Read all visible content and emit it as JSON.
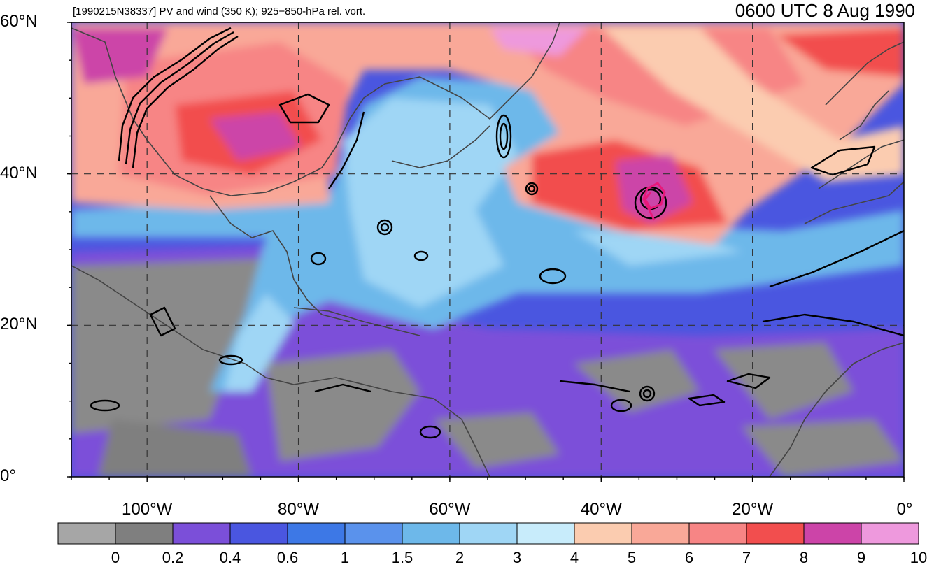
{
  "title_left": "[1990215N38337] PV and wind (350 K); 925−850-hPa rel. vort.",
  "title_right": "0600 UTC 8 Aug 1990",
  "lat_ticks": [
    {
      "label": "60°N",
      "value": 60
    },
    {
      "label": "40°N",
      "value": 40
    },
    {
      "label": "20°N",
      "value": 20
    },
    {
      "label": "0°",
      "value": 0
    }
  ],
  "lon_ticks": [
    {
      "label": "100°W",
      "value": -100
    },
    {
      "label": "80°W",
      "value": -80
    },
    {
      "label": "60°W",
      "value": -60
    },
    {
      "label": "40°W",
      "value": -40
    },
    {
      "label": "20°W",
      "value": -20
    },
    {
      "label": "0°",
      "value": 0
    }
  ],
  "extent": {
    "lon_min": -110,
    "lon_max": 0,
    "lat_min": 0,
    "lat_max": 60
  },
  "colorbar": {
    "labels": [
      "0",
      "0.2",
      "0.4",
      "0.6",
      "1",
      "1.5",
      "2",
      "3",
      "4",
      "5",
      "6",
      "7",
      "8",
      "9",
      "10"
    ],
    "colors": [
      "#a6a6a6",
      "#7f7f7f",
      "#7b4fd9",
      "#4a56e0",
      "#3d78e6",
      "#5a92ec",
      "#6db8ea",
      "#9fd6f5",
      "#c8ecfb",
      "#fbccb0",
      "#f9a898",
      "#f78585",
      "#f24e4e",
      "#cc44a8",
      "#ee99dd"
    ]
  },
  "colors": {
    "land_outline": "#444444",
    "vorticity_contour": "#000000",
    "storm_track": "#e8197a",
    "grid": "#333333"
  }
}
